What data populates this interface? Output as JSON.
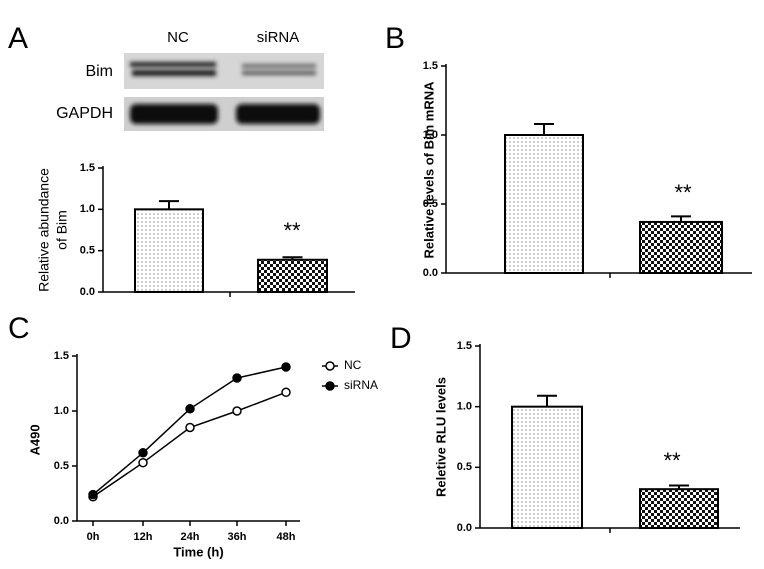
{
  "chart_data": [
    {
      "type": "bar",
      "panel": "A",
      "blot_lanes": [
        "NC",
        "siRNA"
      ],
      "blot_rows": [
        "Bim",
        "GAPDH"
      ],
      "ylabel": [
        "Relative abundance",
        "of Bim"
      ],
      "categories": [
        null,
        null
      ],
      "values": [
        1.0,
        0.39
      ],
      "errors": [
        0.1,
        0.03
      ],
      "patterns": [
        "dots",
        "checker"
      ],
      "annotation": "**",
      "ylim": [
        0,
        1.5
      ],
      "yticks": [
        {
          "value": 0,
          "label": "0.0"
        },
        0.5,
        {
          "value": 1,
          "label": "1.0"
        },
        1.5
      ]
    },
    {
      "type": "bar",
      "panel": "B",
      "ylabel": "Relative levels of Bim mRNA",
      "categories": [
        null,
        null
      ],
      "values": [
        1.0,
        0.37
      ],
      "errors": [
        0.08,
        0.04
      ],
      "patterns": [
        "dots",
        "checker"
      ],
      "annotation": "**",
      "ylim": [
        0,
        1.5
      ],
      "yticks": [
        {
          "value": 0,
          "label": "0.0"
        },
        0.5,
        {
          "value": 1,
          "label": "1.0"
        },
        1.5
      ]
    },
    {
      "type": "line",
      "panel": "C",
      "ylabel": "A490",
      "xlabel": "Time (h)",
      "categories": [
        "0h",
        "12h",
        "24h",
        "36h",
        "48h"
      ],
      "series": [
        {
          "name": "NC",
          "color": "#000000",
          "filled": false,
          "values": [
            0.22,
            0.53,
            0.85,
            1.0,
            1.17
          ]
        },
        {
          "name": "siRNA",
          "color": "#000000",
          "filled": true,
          "values": [
            0.24,
            0.62,
            1.02,
            1.3,
            1.4
          ]
        }
      ],
      "ylim": [
        0,
        1.5
      ],
      "yticks": [
        {
          "value": 0,
          "label": "0.0"
        },
        0.5,
        {
          "value": 1,
          "label": "1.0"
        },
        1.5
      ]
    },
    {
      "type": "bar",
      "panel": "D",
      "ylabel": "Reletive RLU levels",
      "categories": [
        null,
        null
      ],
      "values": [
        1.0,
        0.32
      ],
      "errors": [
        0.09,
        0.03
      ],
      "patterns": [
        "dots",
        "checker"
      ],
      "annotation": "**",
      "ylim": [
        0,
        1.5
      ],
      "yticks": [
        {
          "value": 0,
          "label": "0.0"
        },
        0.5,
        {
          "value": 1,
          "label": "1.0"
        },
        1.5
      ]
    }
  ]
}
